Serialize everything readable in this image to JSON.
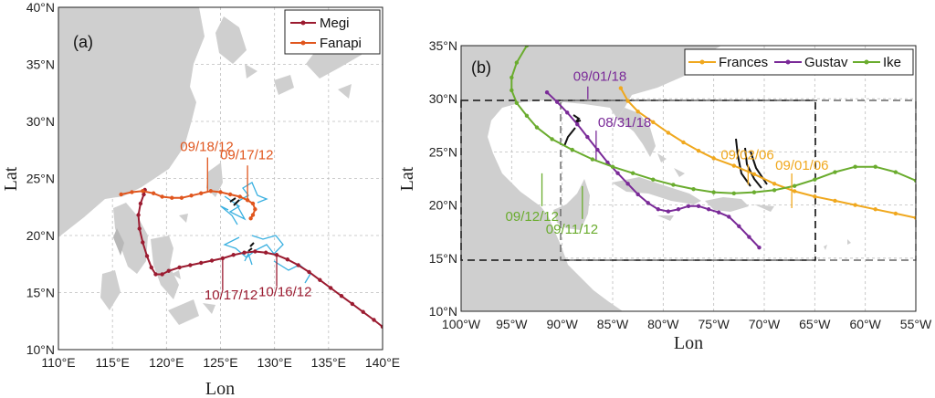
{
  "chart_data": [
    {
      "type": "line",
      "panel": "(a)",
      "xlabel": "Lon",
      "ylabel": "Lat",
      "xlim": [
        110,
        140
      ],
      "ylim": [
        10,
        40
      ],
      "xticks": [
        110,
        115,
        120,
        125,
        130,
        135,
        140
      ],
      "yticks": [
        10,
        15,
        20,
        25,
        30,
        35,
        40
      ],
      "xtick_labels": [
        "110°E",
        "115°E",
        "120°E",
        "125°E",
        "130°E",
        "135°E",
        "140°E"
      ],
      "ytick_labels": [
        "10°N",
        "15°N",
        "20°N",
        "25°N",
        "30°N",
        "35°N",
        "40°N"
      ],
      "grid": true,
      "legend": "top-right",
      "colors": {
        "Megi": "#9b1b30",
        "Fanapi": "#e0561e",
        "obs": "#3ab0e0",
        "land": "#cfcfcf"
      },
      "series": [
        {
          "name": "Megi",
          "x": [
            140,
            139.2,
            138.2,
            137.2,
            136.2,
            135.2,
            134.2,
            133.2,
            132.2,
            131.2,
            130.2,
            129.2,
            128.2,
            127.2,
            126.2,
            125.2,
            124.2,
            123.2,
            122.2,
            121.2,
            120.2,
            119.6,
            119.0,
            118.6,
            118.2,
            117.8,
            117.5,
            117.4,
            117.6,
            117.9,
            118.0
          ],
          "y": [
            12.0,
            12.6,
            13.3,
            14.0,
            14.7,
            15.4,
            16.1,
            16.8,
            17.4,
            17.9,
            18.3,
            18.5,
            18.6,
            18.5,
            18.3,
            18.0,
            17.8,
            17.6,
            17.4,
            17.2,
            16.9,
            16.6,
            16.6,
            17.2,
            18.2,
            19.4,
            20.6,
            21.8,
            22.8,
            23.6,
            24.0
          ]
        },
        {
          "name": "Fanapi",
          "x": [
            115.8,
            116.8,
            117.8,
            118.8,
            119.6,
            120.5,
            121.4,
            122.3,
            123.2,
            124.1,
            125.0,
            125.9,
            126.8,
            127.5,
            128.0,
            128.2,
            128.0,
            127.8
          ],
          "y": [
            23.6,
            23.8,
            23.9,
            23.7,
            23.4,
            23.3,
            23.3,
            23.5,
            23.7,
            23.9,
            23.8,
            23.6,
            23.4,
            23.1,
            22.8,
            22.3,
            21.8,
            21.5
          ]
        }
      ],
      "annotations": [
        {
          "text": "09/18/12",
          "series": "Fanapi",
          "x": 123.8,
          "y": 23.8
        },
        {
          "text": "09/17/12",
          "series": "Fanapi",
          "x": 127.5,
          "y": 23.1
        },
        {
          "text": "10/17/12",
          "series": "Megi",
          "x": 125.2,
          "y": 18.0
        },
        {
          "text": "10/16/12",
          "series": "Megi",
          "x": 130.2,
          "y": 18.3
        }
      ]
    },
    {
      "type": "line",
      "panel": "(b)",
      "xlabel": "Lon",
      "ylabel": "Lat",
      "xlim": [
        -100,
        -55
      ],
      "ylim": [
        10,
        35
      ],
      "xticks": [
        -100,
        -95,
        -90,
        -85,
        -80,
        -75,
        -70,
        -65,
        -60,
        -55
      ],
      "yticks": [
        10,
        15,
        20,
        25,
        30,
        35
      ],
      "xtick_labels": [
        "100°W",
        "95°W",
        "90°W",
        "85°W",
        "80°W",
        "75°W",
        "70°W",
        "65°W",
        "60°W",
        "55°W"
      ],
      "ytick_labels": [
        "10°N",
        "15°N",
        "20°N",
        "25°N",
        "30°N",
        "35°N"
      ],
      "grid": true,
      "legend": "top-right",
      "colors": {
        "Frances": "#f0a81e",
        "Gustav": "#7a2a98",
        "Ike": "#6aac2e",
        "obs": "#111111",
        "land": "#cfcfcf"
      },
      "series": [
        {
          "name": "Frances",
          "x": [
            -55.0,
            -57.0,
            -59.0,
            -61.0,
            -63.0,
            -65.0,
            -67.0,
            -69.0,
            -71.0,
            -73.0,
            -75.0,
            -76.5,
            -78.0,
            -79.5,
            -81.0,
            -82.5,
            -83.5,
            -84.2
          ],
          "y": [
            18.8,
            19.2,
            19.6,
            20.0,
            20.4,
            20.8,
            21.3,
            22.0,
            22.9,
            23.7,
            24.4,
            25.1,
            25.9,
            26.8,
            27.8,
            28.8,
            29.8,
            31.0
          ]
        },
        {
          "name": "Gustav",
          "x": [
            -70.5,
            -71.5,
            -72.5,
            -73.5,
            -74.5,
            -75.5,
            -76.5,
            -77.5,
            -78.5,
            -79.5,
            -80.5,
            -81.5,
            -82.5,
            -83.5,
            -84.5,
            -85.5,
            -86.5,
            -87.5,
            -88.5,
            -89.5,
            -90.5,
            -91.5
          ],
          "y": [
            16.0,
            17.0,
            18.0,
            18.9,
            19.3,
            19.6,
            19.9,
            19.9,
            19.6,
            19.4,
            19.6,
            20.2,
            21.0,
            22.0,
            23.0,
            24.0,
            25.2,
            26.4,
            27.6,
            28.7,
            29.7,
            30.6
          ]
        },
        {
          "name": "Ike",
          "x": [
            -55.0,
            -57.0,
            -59.0,
            -61.0,
            -63.0,
            -65.0,
            -67.0,
            -69.0,
            -71.0,
            -73.0,
            -75.0,
            -77.0,
            -79.0,
            -81.0,
            -83.0,
            -85.0,
            -87.0,
            -89.0,
            -91.0,
            -92.5,
            -93.5,
            -94.5,
            -95.0,
            -95.0,
            -94.5,
            -93.5
          ],
          "y": [
            22.3,
            23.1,
            23.6,
            23.6,
            23.1,
            22.4,
            21.8,
            21.4,
            21.2,
            21.1,
            21.2,
            21.5,
            21.9,
            22.4,
            23.0,
            23.6,
            24.3,
            25.2,
            26.2,
            27.3,
            28.4,
            29.6,
            30.8,
            32.0,
            33.4,
            35.0
          ]
        }
      ],
      "annotations": [
        {
          "text": "09/01/18",
          "series": "Gustav",
          "x": -88.0,
          "y": 31.5
        },
        {
          "text": "08/31/18",
          "series": "Gustav",
          "x": -87.0,
          "y": 25.8
        },
        {
          "text": "09/02/06",
          "series": "Frances",
          "x": -72.5,
          "y": 23.8
        },
        {
          "text": "09/01/06",
          "series": "Frances",
          "x": -68.0,
          "y": 21.6
        },
        {
          "text": "09/12/12",
          "series": "Ike",
          "x": -92.0,
          "y": 23.5
        },
        {
          "text": "09/11/12",
          "series": "Ike",
          "x": -88.0,
          "y": 22.3
        }
      ]
    }
  ]
}
